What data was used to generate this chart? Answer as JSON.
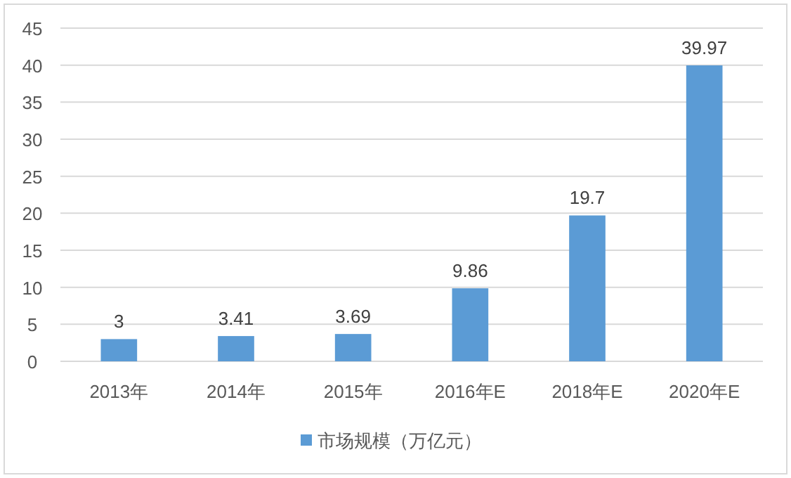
{
  "chart_data": {
    "type": "bar",
    "categories": [
      "2013年",
      "2014年",
      "2015年",
      "2016年E",
      "2018年E",
      "2020年E"
    ],
    "series": [
      {
        "name": "市场规模（万亿元）",
        "color": "#5b9bd5",
        "values": [
          3,
          3.41,
          3.69,
          9.86,
          19.7,
          39.97
        ]
      }
    ],
    "ylim": [
      0,
      45
    ],
    "yticks": [
      0,
      5,
      10,
      15,
      20,
      25,
      30,
      35,
      40,
      45
    ],
    "grid": "y",
    "legend": "bottom",
    "data_labels": true
  }
}
